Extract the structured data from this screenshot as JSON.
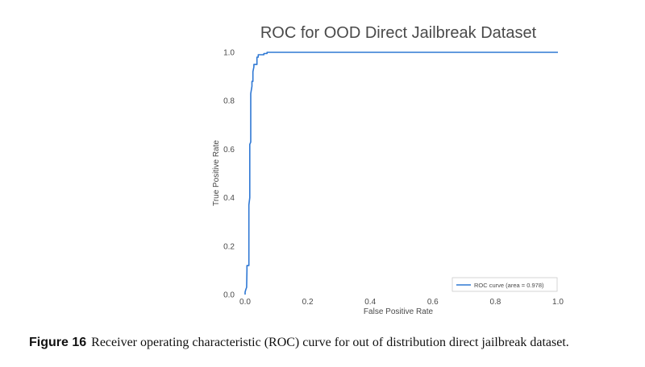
{
  "chart_data": {
    "type": "line",
    "title": "ROC for OOD Direct Jailbreak Dataset",
    "xlabel": "False Positive Rate",
    "ylabel": "True Positive Rate",
    "xlim": [
      0.0,
      1.0
    ],
    "ylim": [
      0.0,
      1.0
    ],
    "xticks": [
      "0.0",
      "0.2",
      "0.4",
      "0.6",
      "0.8",
      "1.0"
    ],
    "yticks": [
      "0.0",
      "0.2",
      "0.4",
      "0.6",
      "0.8",
      "1.0"
    ],
    "grid": false,
    "legend_position": "lower-right",
    "colors": {
      "roc": "#2f78d4",
      "axes_text": "#4a4a4a"
    },
    "series": [
      {
        "name": "ROC curve (area = 0.978)",
        "x": [
          0.0,
          0.0,
          0.002,
          0.005,
          0.006,
          0.006,
          0.012,
          0.012,
          0.015,
          0.015,
          0.018,
          0.018,
          0.022,
          0.022,
          0.025,
          0.025,
          0.028,
          0.028,
          0.038,
          0.038,
          0.042,
          0.042,
          0.06,
          0.06,
          0.07,
          0.07,
          1.0
        ],
        "y": [
          0.0,
          0.01,
          0.02,
          0.03,
          0.1,
          0.12,
          0.12,
          0.37,
          0.4,
          0.62,
          0.63,
          0.83,
          0.86,
          0.88,
          0.88,
          0.92,
          0.94,
          0.95,
          0.95,
          0.98,
          0.98,
          0.99,
          0.99,
          0.995,
          0.995,
          1.0,
          1.0
        ]
      }
    ]
  },
  "caption": {
    "label": "Figure 16",
    "text": "Receiver operating characteristic (ROC) curve for out of distribution direct jailbreak dataset."
  }
}
